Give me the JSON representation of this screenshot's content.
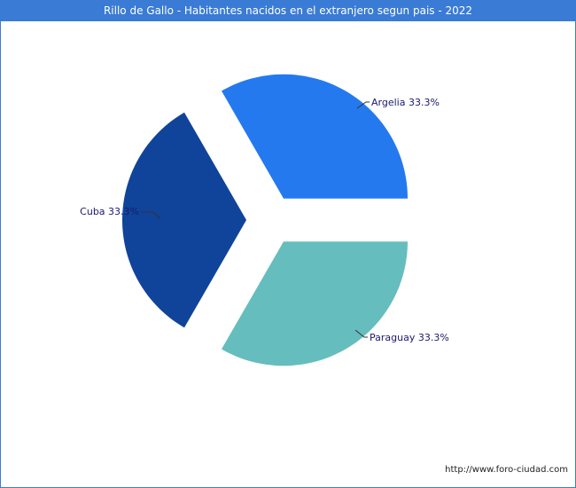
{
  "chart_data": {
    "type": "pie",
    "title": "Rillo de Gallo - Habitantes nacidos en el extranjero segun pais - 2022",
    "slices": [
      {
        "label": "Argelia",
        "value": 33.3,
        "display": "Argelia 33.3%",
        "color": "#2479ef"
      },
      {
        "label": "Paraguay",
        "value": 33.3,
        "display": "Paraguay 33.3%",
        "color": "#66bdbd"
      },
      {
        "label": "Cuba",
        "value": 33.3,
        "display": "Cuba 33.3%",
        "color": "#10449a"
      }
    ],
    "exploded": true,
    "label_style": "callout lines outside slices"
  },
  "footer": {
    "credit": "http://www.foro-ciudad.com"
  },
  "colors": {
    "frame": "#3a7bd5",
    "title_bg": "#3a7bd5",
    "title_text": "#ffffff",
    "label_text": "#1a1a6e"
  }
}
